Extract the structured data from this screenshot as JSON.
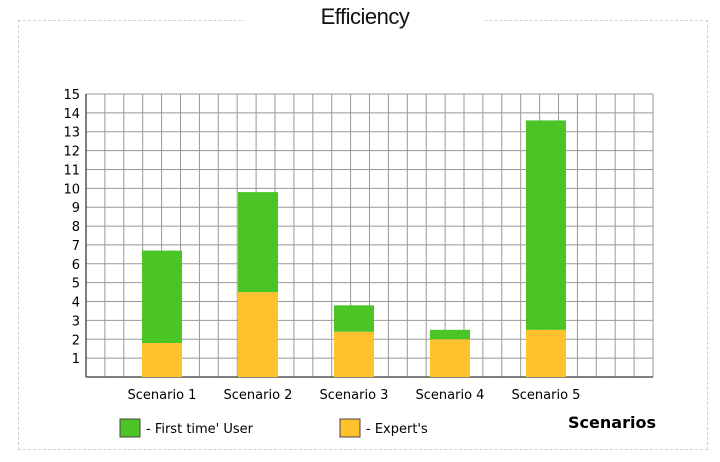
{
  "chart_data": {
    "type": "bar",
    "stacked": true,
    "title": "Efficiency",
    "xlabel": "Scenarios",
    "ylabel": "",
    "ylim": [
      0,
      15
    ],
    "yticks": [
      "1",
      "2",
      "3",
      "4",
      "5",
      "6",
      "7",
      "8",
      "9",
      "10",
      "11",
      "12",
      "13",
      "14",
      "15"
    ],
    "grid": true,
    "legend_position": "bottom",
    "categories": [
      "Scenario 1",
      "Scenario 2",
      "Scenario 3",
      "Scenario 4",
      "Scenario 5"
    ],
    "series": [
      {
        "name": "Expert's",
        "legend_label": "- Expert's",
        "color": "#FFC12E",
        "values": [
          1.8,
          4.5,
          2.4,
          2.0,
          2.5
        ]
      },
      {
        "name": "First time' User",
        "legend_label": "- First time' User",
        "color": "#4BC526",
        "values": [
          4.9,
          5.3,
          1.4,
          0.5,
          11.1
        ]
      }
    ],
    "grid_color": "#999999",
    "axis_color": "#555555"
  }
}
